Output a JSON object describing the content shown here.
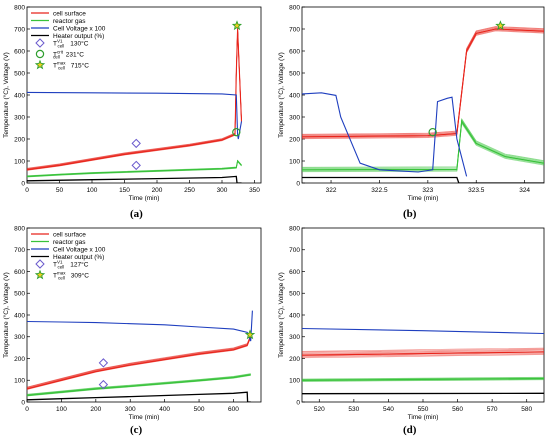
{
  "chart_data": [
    {
      "id": "a",
      "type": "line",
      "caption": "(a)",
      "xlabel": "Time (min)",
      "ylabel": "Temperature (°C), Voltage (V)",
      "xlim": [
        0,
        360
      ],
      "ylim": [
        0,
        800
      ],
      "xticks": [
        0,
        50,
        100,
        150,
        200,
        250,
        300,
        350
      ],
      "yticks": [
        0,
        100,
        200,
        300,
        400,
        500,
        600,
        700,
        800
      ],
      "legend_position": "top-left",
      "legend": [
        {
          "label": "cell surface",
          "symbol": "line",
          "color": "#e8251c"
        },
        {
          "label": "reactor gas",
          "symbol": "line",
          "color": "#38c23a"
        },
        {
          "label": "Cell Voltage x 100",
          "symbol": "line",
          "color": "#1f3fbf"
        },
        {
          "label": "Heater output (%)",
          "symbol": "line",
          "color": "#000000"
        },
        {
          "label": "T",
          "sup": "V1",
          "sub": "cell",
          "value": "130°C",
          "symbol": "diamond",
          "color": "#6a5acd"
        },
        {
          "label": "T",
          "sup": "crit",
          "sub": "cell",
          "value": "231°C",
          "symbol": "circle",
          "color": "#2e9e2e"
        },
        {
          "label": "T",
          "sup": "max",
          "sub": "cell",
          "value": "715°C",
          "symbol": "star",
          "color": "#2e9e2e"
        }
      ],
      "series": [
        {
          "name": "cell surface",
          "color": "#e8251c",
          "band": [
            55,
            72
          ],
          "x": [
            0,
            50,
            100,
            150,
            200,
            250,
            300,
            320,
            322,
            324,
            330
          ],
          "y": [
            60,
            80,
            105,
            130,
            150,
            170,
            195,
            220,
            500,
            700,
            280
          ]
        },
        {
          "name": "reactor gas",
          "color": "#38c23a",
          "band": [
            25,
            35
          ],
          "x": [
            0,
            50,
            100,
            150,
            200,
            250,
            300,
            322,
            324,
            330
          ],
          "y": [
            30,
            38,
            45,
            50,
            55,
            60,
            65,
            70,
            100,
            80
          ]
        },
        {
          "name": "Cell Voltage x 100",
          "color": "#1f3fbf",
          "x": [
            0,
            100,
            200,
            300,
            322,
            324,
            325,
            330
          ],
          "y": [
            412,
            410,
            408,
            405,
            400,
            220,
            200,
            280
          ]
        },
        {
          "name": "Heater output (%)",
          "color": "#000000",
          "x": [
            0,
            100,
            200,
            300,
            322,
            323,
            330
          ],
          "y": [
            10,
            15,
            20,
            25,
            30,
            0,
            0
          ]
        }
      ],
      "markers": [
        {
          "symbol": "diamond",
          "color": "#6a5acd",
          "x": 168,
          "y": 180
        },
        {
          "symbol": "diamond",
          "color": "#6a5acd",
          "x": 168,
          "y": 80
        },
        {
          "symbol": "circle",
          "color": "#2e9e2e",
          "x": 322,
          "y": 231
        },
        {
          "symbol": "star",
          "color": "#2e9e2e",
          "x": 323,
          "y": 715
        }
      ]
    },
    {
      "id": "b",
      "type": "line",
      "caption": "(b)",
      "xlabel": "Time (min)",
      "ylabel": "Temperature (°C), Voltage (V)",
      "xlim": [
        321.7,
        324.2
      ],
      "ylim": [
        0,
        800
      ],
      "xticks": [
        322,
        322.5,
        323,
        323.5,
        324
      ],
      "yticks": [
        0,
        100,
        200,
        300,
        400,
        500,
        600,
        700,
        800
      ],
      "series": [
        {
          "name": "cell surface",
          "color": "#e8251c",
          "band": [
            195,
            230
          ],
          "x": [
            321.7,
            323.0,
            323.3,
            323.4,
            323.5,
            323.7,
            324.2
          ],
          "y": [
            210,
            215,
            225,
            600,
            680,
            700,
            690
          ]
        },
        {
          "name": "reactor gas",
          "color": "#38c23a",
          "band": [
            45,
            80
          ],
          "x": [
            321.7,
            323.3,
            323.35,
            323.5,
            323.8,
            324.2
          ],
          "y": [
            60,
            62,
            280,
            180,
            120,
            90
          ]
        },
        {
          "name": "Cell Voltage x 100",
          "color": "#1f3fbf",
          "x": [
            321.7,
            321.9,
            322.05,
            322.1,
            322.3,
            322.5,
            322.7,
            322.9,
            323.05,
            323.1,
            323.2,
            323.25,
            323.3,
            323.4
          ],
          "y": [
            405,
            410,
            398,
            300,
            90,
            60,
            55,
            50,
            60,
            370,
            385,
            390,
            200,
            30
          ]
        },
        {
          "name": "Heater output (%)",
          "color": "#000000",
          "x": [
            321.7,
            323.3,
            323.32,
            324.2
          ],
          "y": [
            25,
            25,
            0,
            0
          ]
        }
      ],
      "markers": [
        {
          "symbol": "circle",
          "color": "#2e9e2e",
          "x": 323.05,
          "y": 231
        },
        {
          "symbol": "star",
          "color": "#2e9e2e",
          "x": 323.75,
          "y": 715
        }
      ]
    },
    {
      "id": "c",
      "type": "line",
      "caption": "(c)",
      "xlabel": "Time (min)",
      "ylabel": "Temperature (°C), Voltage (V)",
      "xlim": [
        0,
        680
      ],
      "ylim": [
        0,
        800
      ],
      "xticks": [
        0,
        100,
        200,
        300,
        400,
        500,
        600
      ],
      "yticks": [
        0,
        100,
        200,
        300,
        400,
        500,
        600,
        700,
        800
      ],
      "legend_position": "top-left",
      "legend": [
        {
          "label": "cell surface",
          "symbol": "line",
          "color": "#e8251c"
        },
        {
          "label": "reactor gas",
          "symbol": "line",
          "color": "#38c23a"
        },
        {
          "label": "Cell Voltage x 100",
          "symbol": "line",
          "color": "#1f3fbf"
        },
        {
          "label": "Heater output (%)",
          "symbol": "line",
          "color": "#000000"
        },
        {
          "label": "T",
          "sup": "V1",
          "sub": "cell",
          "value": "127°C",
          "symbol": "diamond",
          "color": "#6a5acd"
        },
        {
          "label": "T",
          "sup": "max",
          "sub": "cell",
          "value": "309°C",
          "symbol": "star",
          "color": "#2e9e2e"
        }
      ],
      "series": [
        {
          "name": "cell surface",
          "color": "#e8251c",
          "band": [
            55,
            75
          ],
          "x": [
            0,
            100,
            200,
            300,
            400,
            500,
            600,
            640,
            650
          ],
          "y": [
            60,
            100,
            140,
            170,
            195,
            220,
            240,
            260,
            300
          ]
        },
        {
          "name": "reactor gas",
          "color": "#38c23a",
          "band": [
            25,
            40
          ],
          "x": [
            0,
            100,
            200,
            300,
            400,
            500,
            600,
            650
          ],
          "y": [
            30,
            45,
            60,
            72,
            85,
            98,
            112,
            125
          ]
        },
        {
          "name": "Cell Voltage x 100",
          "color": "#1f3fbf",
          "x": [
            0,
            100,
            200,
            300,
            400,
            500,
            600,
            640,
            650,
            655
          ],
          "y": [
            370,
            368,
            365,
            360,
            355,
            345,
            335,
            320,
            280,
            420
          ]
        },
        {
          "name": "Heater output (%)",
          "color": "#000000",
          "x": [
            0,
            100,
            200,
            300,
            400,
            500,
            600,
            640,
            641,
            650
          ],
          "y": [
            10,
            15,
            20,
            25,
            30,
            35,
            40,
            45,
            0,
            0
          ]
        }
      ],
      "markers": [
        {
          "symbol": "diamond",
          "color": "#6a5acd",
          "x": 222,
          "y": 180
        },
        {
          "symbol": "diamond",
          "color": "#6a5acd",
          "x": 222,
          "y": 80
        },
        {
          "symbol": "star",
          "color": "#2e9e2e",
          "x": 648,
          "y": 309
        }
      ]
    },
    {
      "id": "d",
      "type": "line",
      "caption": "(d)",
      "xlabel": "Time (min)",
      "ylabel": "Temperature (°C), Voltage (V)",
      "xlim": [
        515,
        585
      ],
      "ylim": [
        0,
        800
      ],
      "xticks": [
        520,
        530,
        540,
        550,
        560,
        570,
        580
      ],
      "yticks": [
        0,
        100,
        200,
        300,
        400,
        500,
        600,
        700,
        800
      ],
      "series": [
        {
          "name": "cell surface",
          "color": "#e8251c",
          "band": [
            195,
            245
          ],
          "x": [
            515,
            540,
            560,
            585
          ],
          "y": [
            215,
            220,
            225,
            230
          ]
        },
        {
          "name": "reactor gas",
          "color": "#38c23a",
          "band": [
            90,
            110
          ],
          "x": [
            515,
            550,
            585
          ],
          "y": [
            100,
            104,
            108
          ]
        },
        {
          "name": "Cell Voltage x 100",
          "color": "#1f3fbf",
          "x": [
            515,
            550,
            585
          ],
          "y": [
            338,
            328,
            315
          ]
        },
        {
          "name": "Heater output (%)",
          "color": "#000000",
          "x": [
            515,
            585
          ],
          "y": [
            38,
            40
          ]
        }
      ],
      "markers": []
    }
  ]
}
